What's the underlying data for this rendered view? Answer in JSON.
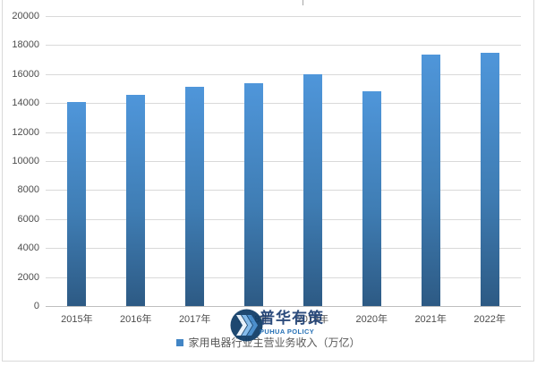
{
  "chart_data": {
    "type": "bar",
    "title": "",
    "categories": [
      "2015年",
      "2016年",
      "2017年",
      "2018年",
      "2019年",
      "2020年",
      "2021年",
      "2022年"
    ],
    "values": [
      14080,
      14600,
      15100,
      15350,
      16000,
      14800,
      17340,
      17500
    ],
    "series_name": "家用电器行业主营业务收入（万亿）",
    "xlabel": "",
    "ylabel": "",
    "ylim": [
      0,
      20000
    ],
    "ytick_step": 2000,
    "ytick_labels": [
      "0",
      "2000",
      "4000",
      "6000",
      "8000",
      "10000",
      "12000",
      "14000",
      "16000",
      "18000",
      "20000"
    ],
    "grid": "horizontal",
    "legend_position": "bottom-center"
  },
  "legend": {
    "label": "家用电器行业主营业务收入（万亿）"
  },
  "watermark": {
    "cn_name": "普华有策",
    "en_name": "PUHUA POLICY"
  },
  "colors": {
    "bar_top": "#4f96da",
    "bar_mid": "#3f7db4",
    "bar_bottom": "#2d5a84",
    "gridline": "#d9d9d9",
    "axis_line": "#bfbfbf",
    "tick_label": "#4d4d4d",
    "legend_text": "#595959",
    "legend_marker": "#4285c5",
    "border": "#d9d9d9",
    "logo_circle": "#0d3b66",
    "logo_chevron_1": "#e8f2fb",
    "logo_chevron_2": "#7db8ea",
    "logo_chevron_3": "#3f87c9",
    "logo_cn_text": "#1c3e73",
    "logo_en_text": "#1566b0"
  }
}
